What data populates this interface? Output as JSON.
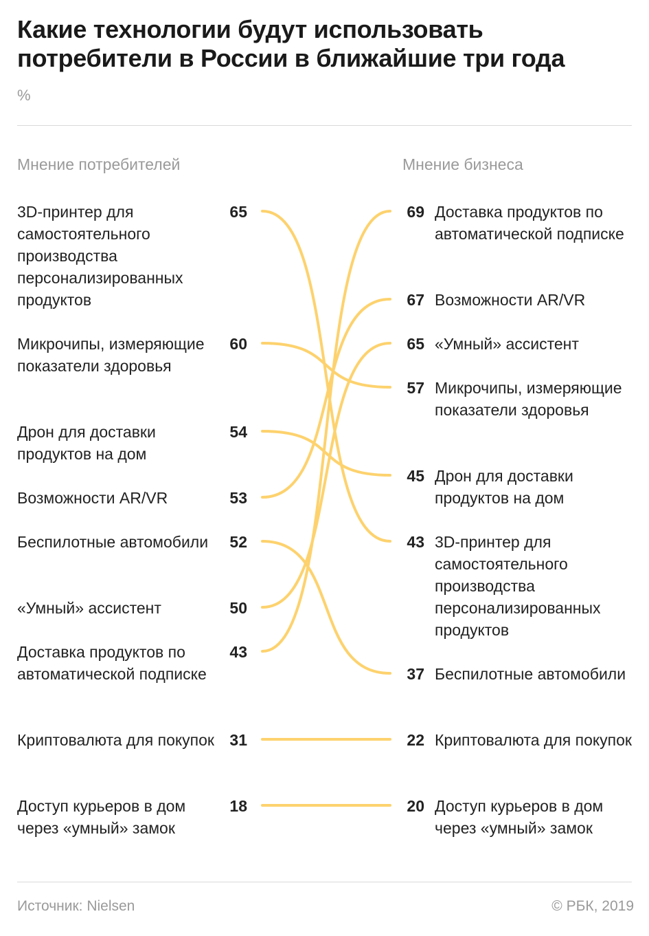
{
  "title": "Какие технологии будут использовать потребители в России в ближайшие три года",
  "unit": "%",
  "source": "Источник: Nielsen",
  "credit": "© РБК, 2019",
  "colors": {
    "line": "#FDD26E",
    "text": "#222222",
    "muted": "#9A9A9A",
    "rule": "#D9D9D9"
  },
  "chart_data": {
    "type": "slope",
    "left_title": "Мнение потребителей",
    "right_title": "Мнение бизнеса",
    "left": [
      {
        "label": "3D-принтер для самостоятельного производства персонализированных продуктов",
        "value": 65
      },
      {
        "label": "Микрочипы, измеряющие показатели здоровья",
        "value": 60
      },
      {
        "label": "Дрон для доставки продуктов на дом",
        "value": 54
      },
      {
        "label": "Возможности AR/VR",
        "value": 53
      },
      {
        "label": "Беспилотные автомобили",
        "value": 52
      },
      {
        "label": "«Умный» ассистент",
        "value": 50
      },
      {
        "label": "Доставка продуктов по автоматической подписке",
        "value": 43
      },
      {
        "label": "Криптовалюта для покупок",
        "value": 31
      },
      {
        "label": "Доступ курьеров в дом через «умный» замок",
        "value": 18
      }
    ],
    "right": [
      {
        "label": "Доставка продуктов по автоматической подписке",
        "value": 69
      },
      {
        "label": "Возможности AR/VR",
        "value": 67
      },
      {
        "label": "«Умный» ассистент",
        "value": 65
      },
      {
        "label": "Микрочипы, измеряющие показатели здоровья",
        "value": 57
      },
      {
        "label": "Дрон для доставки продуктов на дом",
        "value": 45
      },
      {
        "label": "3D-принтер для самостоятельного производства персонализированных продуктов",
        "value": 43
      },
      {
        "label": "Беспилотные автомобили",
        "value": 37
      },
      {
        "label": "Криптовалюта для покупок",
        "value": 22
      },
      {
        "label": "Доступ курьеров в дом через «умный» замок",
        "value": 20
      }
    ],
    "links": [
      [
        0,
        5
      ],
      [
        1,
        3
      ],
      [
        2,
        4
      ],
      [
        3,
        1
      ],
      [
        4,
        6
      ],
      [
        5,
        2
      ],
      [
        6,
        0
      ],
      [
        7,
        7
      ],
      [
        8,
        8
      ]
    ]
  }
}
